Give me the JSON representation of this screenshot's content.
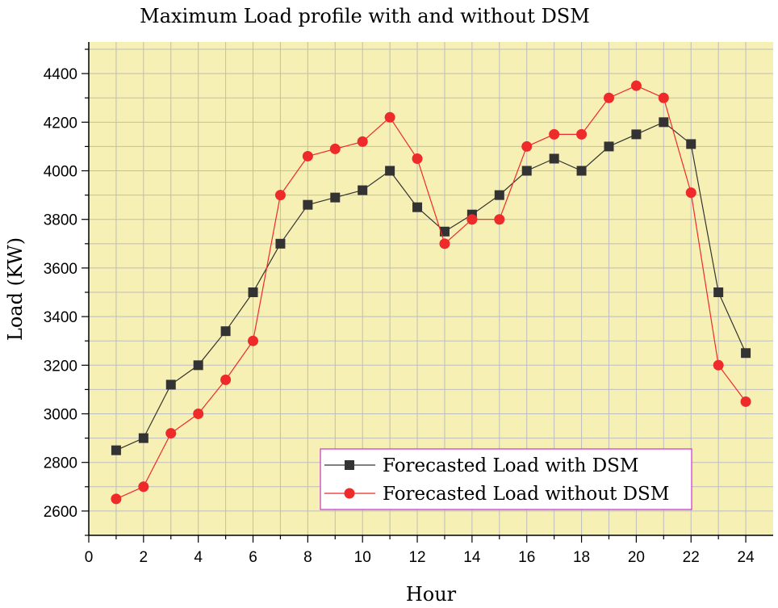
{
  "chart_data": {
    "type": "line",
    "title": "Maximum Load profile with and without DSM",
    "xlabel": "Hour",
    "ylabel": "Load (KW)",
    "xlim": [
      0,
      25
    ],
    "ylim": [
      2500,
      4530
    ],
    "xticks": [
      0,
      2,
      4,
      6,
      8,
      10,
      12,
      14,
      16,
      18,
      20,
      22,
      24
    ],
    "yticks": [
      2600,
      2800,
      3000,
      3200,
      3400,
      3600,
      3800,
      4000,
      4200,
      4400
    ],
    "grid": true,
    "legend_position": "bottom-right",
    "x": [
      1,
      2,
      3,
      4,
      5,
      6,
      7,
      8,
      9,
      10,
      11,
      12,
      13,
      14,
      15,
      16,
      17,
      18,
      19,
      20,
      21,
      22,
      23,
      24
    ],
    "series": [
      {
        "name": "Forecasted Load with DSM",
        "color": "#333333",
        "marker": "square",
        "values": [
          2850,
          2900,
          3120,
          3200,
          3340,
          3500,
          3700,
          3860,
          3890,
          3920,
          4000,
          3850,
          3750,
          3820,
          3900,
          4000,
          4050,
          4000,
          4100,
          4150,
          4200,
          4110,
          3500,
          3250
        ]
      },
      {
        "name": "Forecasted Load without DSM",
        "color": "#ee2a2a",
        "marker": "circle",
        "values": [
          2650,
          2700,
          2920,
          3000,
          3140,
          3300,
          3900,
          4060,
          4090,
          4120,
          4220,
          4050,
          3700,
          3800,
          3800,
          4100,
          4150,
          4150,
          4300,
          4350,
          4300,
          3910,
          3200,
          3050
        ]
      }
    ],
    "colors": {
      "plot_background": "#f7f0b4",
      "grid": "#bdbdbd",
      "legend_border": "#cc33cc"
    }
  }
}
